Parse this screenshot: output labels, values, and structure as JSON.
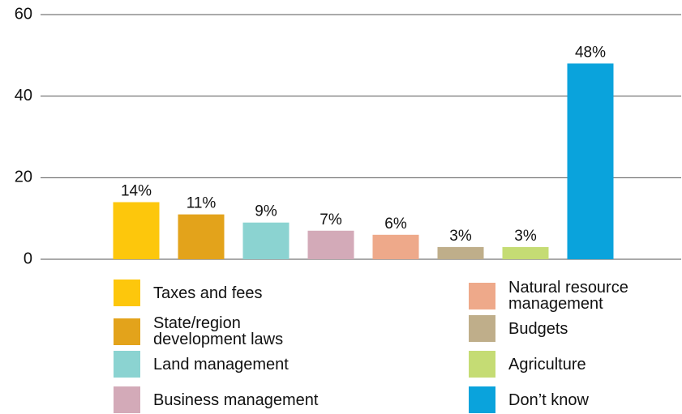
{
  "chart_data": {
    "type": "bar",
    "categories": [
      "Taxes and fees",
      "State/region development laws",
      "Land management",
      "Business management",
      "Natural resource management",
      "Budgets",
      "Agriculture",
      "Don’t know"
    ],
    "values": [
      14,
      11,
      9,
      7,
      6,
      3,
      3,
      48
    ],
    "value_labels": [
      "14%",
      "11%",
      "9%",
      "7%",
      "6%",
      "3%",
      "3%",
      "48%"
    ],
    "colors": [
      "#fdc70c",
      "#e3a31b",
      "#8bd3d1",
      "#d3aab8",
      "#eea98a",
      "#bfae8a",
      "#c5dc74",
      "#0aa3dc"
    ],
    "ylim": [
      0,
      60
    ],
    "yticks": [
      0,
      20,
      40,
      60
    ],
    "grid": true
  }
}
